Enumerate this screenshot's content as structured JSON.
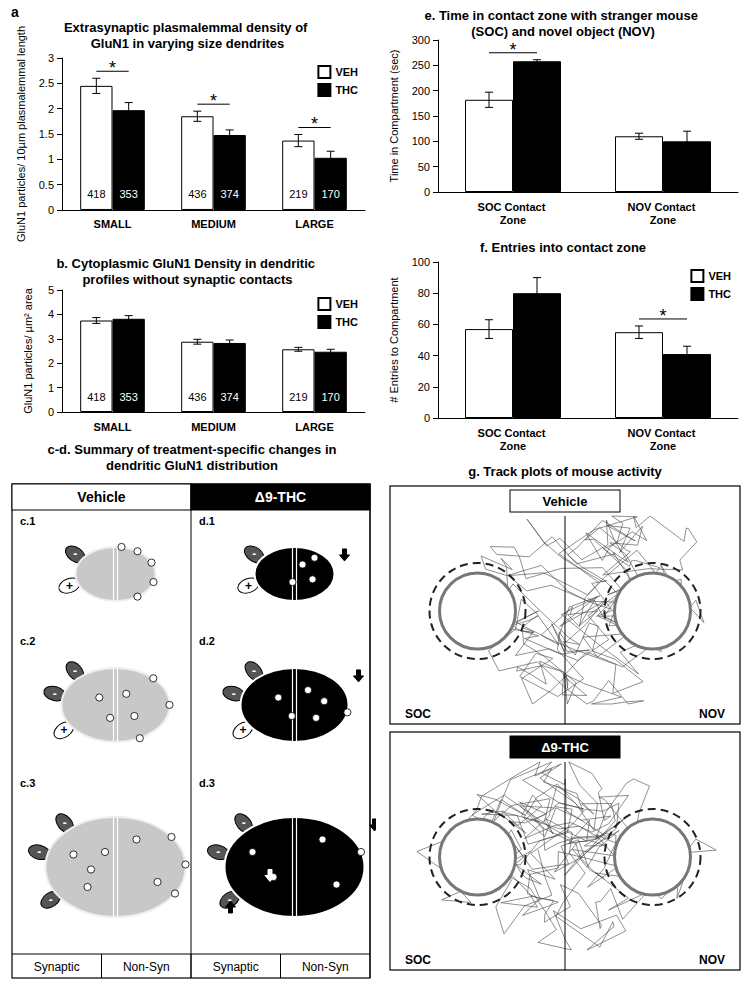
{
  "chart_data": [
    {
      "type": "bar",
      "panel": "a",
      "title": "Extrasynaptic plasmalemmal density of GluN1 in varying size dendrites",
      "y_label": "GluN1 particles/ 10µm plasmalemmal length",
      "categories": [
        "SMALL",
        "MEDIUM",
        "LARGE"
      ],
      "series": [
        {
          "name": "VEH",
          "color": "#ffffff",
          "values": [
            2.45,
            1.85,
            1.37
          ],
          "errors": [
            0.15,
            0.1,
            0.12
          ],
          "counts": [
            418,
            436,
            219
          ]
        },
        {
          "name": "THC",
          "color": "#000000",
          "values": [
            1.97,
            1.48,
            1.03
          ],
          "errors": [
            0.15,
            0.1,
            0.13
          ],
          "counts": [
            353,
            374,
            170
          ]
        }
      ],
      "ylim": [
        0,
        3
      ],
      "yticks": [
        0,
        0.5,
        1,
        1.5,
        2,
        2.5,
        3
      ],
      "grid": false,
      "legend": "upper right",
      "significance": [
        {
          "category": "SMALL",
          "label": "*"
        },
        {
          "category": "MEDIUM",
          "label": "*"
        },
        {
          "category": "LARGE",
          "label": "*"
        }
      ]
    },
    {
      "type": "bar",
      "title": "b. Cytoplasmic GluN1 Density in dendritic profiles without synaptic contacts",
      "y_label": "GluN1 particles/ µm² area",
      "categories": [
        "SMALL",
        "MEDIUM",
        "LARGE"
      ],
      "series": [
        {
          "name": "VEH",
          "color": "#ffffff",
          "values": [
            3.75,
            2.88,
            2.57
          ],
          "errors": [
            0.12,
            0.1,
            0.08
          ],
          "counts": [
            418,
            436,
            219
          ]
        },
        {
          "name": "THC",
          "color": "#000000",
          "values": [
            3.82,
            2.83,
            2.47
          ],
          "errors": [
            0.13,
            0.12,
            0.1
          ],
          "counts": [
            353,
            374,
            170
          ]
        }
      ],
      "ylim": [
        0,
        5
      ],
      "yticks": [
        0,
        1,
        2,
        3,
        4,
        5
      ],
      "grid": false,
      "legend": "upper right"
    },
    {
      "type": "bar",
      "title": "e. Time in contact zone with stranger mouse (SOC) and novel object (NOV)",
      "y_label": "Time in Compartment (sec)",
      "categories": [
        "SOC Contact Zone",
        "NOV Contact Zone"
      ],
      "series": [
        {
          "name": "VEH",
          "color": "#ffffff",
          "values": [
            182,
            110
          ],
          "errors": [
            15,
            6
          ]
        },
        {
          "name": "THC",
          "color": "#000000",
          "values": [
            258,
            100
          ],
          "errors": [
            3,
            20
          ]
        }
      ],
      "ylim": [
        0,
        300
      ],
      "yticks": [
        0,
        50,
        100,
        150,
        200,
        250,
        300
      ],
      "grid": false,
      "significance": [
        {
          "category": "SOC Contact Zone",
          "label": "*"
        }
      ]
    },
    {
      "type": "bar",
      "title": "f. Entries into contact zone",
      "y_label": "# Entries to Compartment",
      "categories": [
        "SOC Contact Zone",
        "NOV Contact Zone"
      ],
      "series": [
        {
          "name": "VEH",
          "color": "#ffffff",
          "values": [
            57,
            55
          ],
          "errors": [
            6,
            4
          ]
        },
        {
          "name": "THC",
          "color": "#000000",
          "values": [
            80,
            41
          ],
          "errors": [
            10,
            5
          ]
        }
      ],
      "ylim": [
        0,
        100
      ],
      "yticks": [
        0,
        20,
        40,
        60,
        80,
        100
      ],
      "grid": false,
      "legend": "upper right",
      "significance": [
        {
          "category": "NOV Contact Zone",
          "label": "*"
        }
      ]
    }
  ],
  "summary_diagram": {
    "title": "c-d. Summary of treatment-specific changes in dendritic GluN1 distribution",
    "columns": [
      {
        "header": "Vehicle",
        "cells": [
          {
            "label": "c.1",
            "terminals": [
              "+",
              "-"
            ]
          },
          {
            "label": "c.2",
            "terminals": [
              "+",
              "-",
              "-"
            ]
          },
          {
            "label": "c.3",
            "terminals": [
              "-",
              "-",
              "-"
            ]
          }
        ]
      },
      {
        "header": "Δ9-THC",
        "cells": [
          {
            "label": "d.1",
            "terminals": [
              "+",
              "-"
            ]
          },
          {
            "label": "d.2",
            "terminals": [
              "+",
              "-",
              "-"
            ]
          },
          {
            "label": "d.3",
            "terminals": [
              "-",
              "-",
              "-"
            ]
          }
        ]
      }
    ],
    "footer": [
      "Synaptic",
      "Non-Syn",
      "Synaptic",
      "Non-Syn"
    ]
  },
  "track_plots": {
    "title": "g. Track plots of mouse activity",
    "panels": [
      {
        "header": "Vehicle",
        "zones": [
          "SOC",
          "NOV"
        ]
      },
      {
        "header": "Δ9-THC",
        "zones": [
          "SOC",
          "NOV"
        ]
      }
    ]
  }
}
